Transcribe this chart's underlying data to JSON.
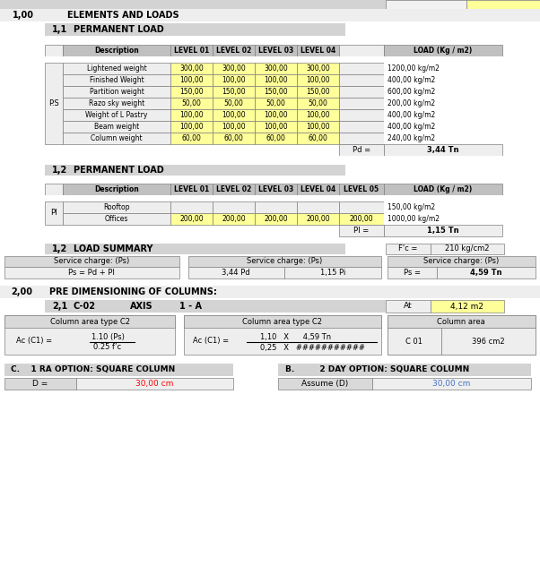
{
  "header1": [
    "Description",
    "LEVEL 01",
    "LEVEL 02",
    "LEVEL 03",
    "LEVEL 04",
    "",
    "LOAD (Kg / m2)"
  ],
  "header2": [
    "Description",
    "LEVEL 01",
    "LEVEL 02",
    "LEVEL 03",
    "LEVEL 04",
    "LEVEL 05",
    "LOAD (Kg / m2)"
  ],
  "ps_rows": [
    [
      "Lightened weight",
      "300,00",
      "300,00",
      "300,00",
      "300,00",
      "",
      "1200,00 kg/m2"
    ],
    [
      "Finished Weight",
      "100,00",
      "100,00",
      "100,00",
      "100,00",
      "",
      "400,00 kg/m2"
    ],
    [
      "Partition weight",
      "150,00",
      "150,00",
      "150,00",
      "150,00",
      "",
      "600,00 kg/m2"
    ],
    [
      "Razo sky weight",
      "50,00",
      "50,00",
      "50,00",
      "50,00",
      "",
      "200,00 kg/m2"
    ],
    [
      "Weight of L Pastry",
      "100,00",
      "100,00",
      "100,00",
      "100,00",
      "",
      "400,00 kg/m2"
    ],
    [
      "Beam weight",
      "100,00",
      "100,00",
      "100,00",
      "100,00",
      "",
      "400,00 kg/m2"
    ],
    [
      "Column weight",
      "60,00",
      "60,00",
      "60,00",
      "60,00",
      "",
      "240,00 kg/m2"
    ]
  ],
  "pl_rows": [
    [
      "Rooftop",
      "",
      "",
      "",
      "",
      "",
      "150,00 kg/m2"
    ],
    [
      "Offices",
      "200,00",
      "200,00",
      "200,00",
      "200,00",
      "200,00",
      "1000,00 kg/m2"
    ]
  ],
  "fc_label": "F'c =",
  "fc_value": "210 kg/cm2",
  "sc1_label": "Service charge: (Ps)",
  "sc1_sub": "Ps = Pd + PI",
  "sc2_label": "Service charge: (Ps)",
  "sc2_vals": [
    "3,44 Pd",
    "1,15 Pi"
  ],
  "sc3_label": "Service charge: (Ps)",
  "sc3_vals": [
    "Ps =",
    "4,59 Tn"
  ],
  "at_label": "At",
  "at_value": "4,12 m2",
  "col_area_title1": "Column area type C2",
  "col_area_title2": "Column area type C2",
  "col_area_title3": "Column area",
  "ac_formula1_line1": "1.10 (Ps)",
  "ac_formula1_line2": "0.25 f’c",
  "ac_formula2_line1": "1,10   X      4,59 Tn",
  "ac_formula2_line2": "0,25   X   ###########",
  "col_c01": "C 01",
  "col_c01_val": "396 cm2",
  "bottom_c": "C.    1 RA OPTION: SQUARE COLUMN",
  "bottom_b": "B.         2 DAY OPTION: SQUARE COLUMN",
  "color_header": "#c0c0c0",
  "color_yellow": "#ffff99",
  "color_light_gray": "#d9d9d9",
  "color_section_bg": "#d3d3d3",
  "color_top_bar": "#d3d3d3"
}
